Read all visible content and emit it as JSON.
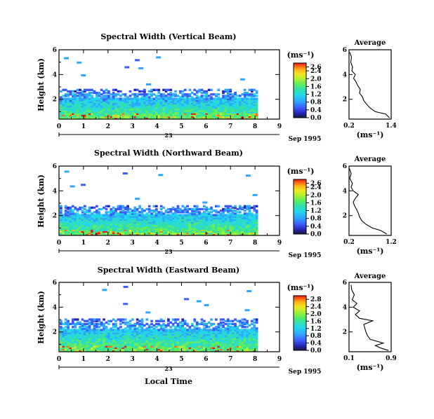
{
  "shared": {
    "xlabel": "Local Time",
    "date_day": "23",
    "date_label": "Sep 1995",
    "unit_label": "(ms⁻¹)",
    "average_title": "Average",
    "ylabel": "Height (km)",
    "x_ticks": [
      "0",
      "1",
      "2",
      "3",
      "4",
      "5",
      "6",
      "7",
      "8",
      "9"
    ],
    "y_ticks": [
      "2",
      "4",
      "6"
    ]
  },
  "chart_data": [
    {
      "type": "heatmap",
      "title": "Spectral Width (Vertical Beam)",
      "xlabel": "Local Time",
      "ylabel": "Height (km)",
      "xlim": [
        0,
        9
      ],
      "ylim": [
        0.4,
        6
      ],
      "data_extent_x": [
        0,
        8.1
      ],
      "echo_top_km": 2.6,
      "colorbar_ticks": [
        "2.6",
        "2.4",
        "2.0",
        "1.6",
        "1.2",
        "0.8",
        "0.4",
        "0.0"
      ],
      "colorbar_range": [
        0,
        2.8
      ],
      "average_profile": {
        "xlim": [
          0.2,
          1.4
        ],
        "x_ticks": [
          "0.2",
          "1.4"
        ],
        "heights": [
          0.5,
          0.8,
          1.0,
          1.3,
          1.6,
          1.9,
          2.2,
          2.5,
          2.8,
          3.1,
          3.4,
          3.7,
          4.0,
          4.3,
          4.6,
          5.0,
          5.4,
          5.8
        ],
        "values": [
          1.35,
          1.25,
          0.95,
          0.8,
          0.7,
          0.62,
          0.58,
          0.5,
          0.52,
          0.45,
          0.4,
          0.33,
          0.38,
          0.28,
          0.3,
          0.25,
          0.27,
          0.22
        ]
      }
    },
    {
      "type": "heatmap",
      "title": "Spectral Width (Northward Beam)",
      "xlabel": "Local Time",
      "ylabel": "Height (km)",
      "xlim": [
        0,
        9
      ],
      "ylim": [
        0.4,
        6
      ],
      "data_extent_x": [
        0,
        8.1
      ],
      "echo_top_km": 2.7,
      "colorbar_ticks": [
        "2.6",
        "2.4",
        "2.0",
        "1.6",
        "1.2",
        "0.8",
        "0.4",
        "0.0"
      ],
      "colorbar_range": [
        0,
        2.8
      ],
      "average_profile": {
        "xlim": [
          0.2,
          1.2
        ],
        "x_ticks": [
          "0.2",
          "1.2"
        ],
        "heights": [
          0.5,
          0.8,
          1.0,
          1.3,
          1.6,
          1.9,
          2.2,
          2.5,
          2.8,
          3.1,
          3.4,
          3.7,
          4.0,
          4.3,
          4.6,
          5.0,
          5.4,
          5.8
        ],
        "values": [
          1.1,
          0.95,
          0.75,
          0.6,
          0.5,
          0.45,
          0.42,
          0.38,
          0.33,
          0.3,
          0.35,
          0.42,
          0.3,
          0.25,
          0.28,
          0.22,
          0.25,
          0.21
        ]
      }
    },
    {
      "type": "heatmap",
      "title": "Spectral Width (Eastward Beam)",
      "xlabel": "Local Time",
      "ylabel": "Height (km)",
      "xlim": [
        0,
        9
      ],
      "ylim": [
        0.4,
        6
      ],
      "data_extent_x": [
        0,
        8.1
      ],
      "echo_top_km": 2.9,
      "colorbar_ticks": [
        "2.8",
        "2.4",
        "2.0",
        "1.6",
        "1.2",
        "0.8",
        "0.4",
        "0.0"
      ],
      "colorbar_range": [
        0,
        3.0
      ],
      "average_profile": {
        "xlim": [
          0.1,
          0.9
        ],
        "x_ticks": [
          "0.1",
          "0.9"
        ],
        "heights": [
          0.5,
          0.7,
          0.9,
          1.1,
          1.4,
          1.7,
          2.0,
          2.3,
          2.6,
          2.9,
          3.1,
          3.4,
          3.7,
          4.0,
          4.3,
          4.6,
          5.0,
          5.4,
          5.8
        ],
        "values": [
          0.85,
          0.7,
          0.6,
          0.75,
          0.5,
          0.45,
          0.42,
          0.4,
          0.38,
          0.55,
          0.3,
          0.22,
          0.3,
          0.18,
          0.25,
          0.16,
          0.2,
          0.15,
          0.14
        ]
      }
    }
  ],
  "colors": {
    "scale": [
      "#1a1a40",
      "#2525b0",
      "#3b5bff",
      "#2ea8ff",
      "#22d8e8",
      "#33e0a8",
      "#66ee55",
      "#b8f030",
      "#f2e81e",
      "#ffb31a",
      "#ff6a14",
      "#e81818"
    ],
    "blank_color": "#3347e6"
  }
}
